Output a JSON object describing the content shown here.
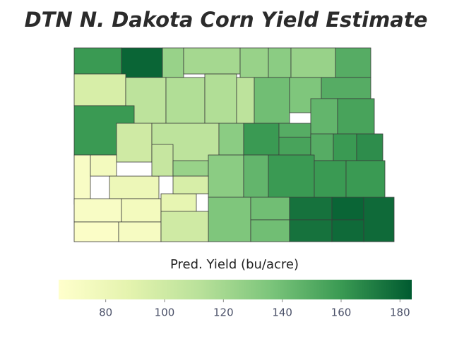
{
  "chart_data": {
    "type": "choropleth",
    "title": "DTN N. Dakota Corn Yield Estimate",
    "colorbar_label": "Pred. Yield (bu/acre)",
    "colorbar_lim": [
      64,
      184
    ],
    "colorbar_ticks": [
      80,
      100,
      120,
      140,
      160,
      180
    ],
    "colors": [
      "#ffffcc",
      "#e4f3ae",
      "#b9e19a",
      "#7cc57b",
      "#3a9a53",
      "#005a30"
    ],
    "values": [
      160,
      180,
      125,
      120,
      125,
      130,
      125,
      150,
      95,
      110,
      115,
      115,
      110,
      140,
      135,
      150,
      145,
      155,
      160,
      100,
      110,
      130,
      160,
      150,
      155,
      150,
      160,
      165,
      70,
      75,
      80,
      105,
      125,
      130,
      145,
      160,
      160,
      160,
      70,
      75,
      85,
      95,
      135,
      140,
      175,
      180,
      178,
      68,
      72,
      100,
      140,
      175,
      178
    ]
  }
}
